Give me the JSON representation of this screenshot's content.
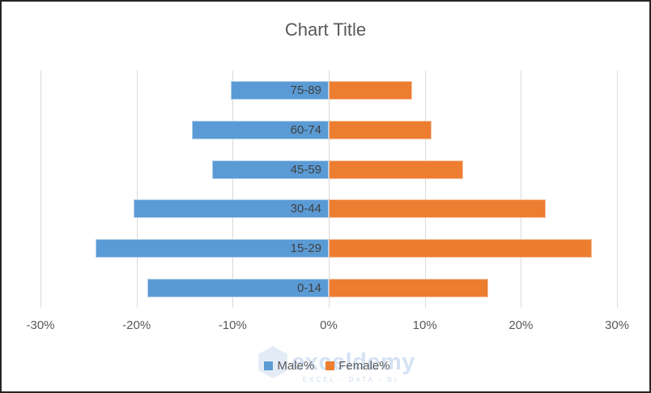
{
  "chart_data": {
    "type": "bar",
    "subtype": "population-pyramid",
    "orientation": "horizontal",
    "title": "Chart Title",
    "category_order": "top_to_bottom",
    "categories": [
      "75-89",
      "60-74",
      "45-59",
      "30-44",
      "15-29",
      "0-14"
    ],
    "series": [
      {
        "name": "Male%",
        "side": "left",
        "color": "#5B9BD5",
        "values": [
          10.2,
          14.2,
          12.1,
          20.3,
          24.3,
          18.9
        ]
      },
      {
        "name": "Female%",
        "side": "right",
        "color": "#ED7D31",
        "values": [
          8.7,
          10.7,
          14.0,
          22.6,
          27.4,
          16.6
        ]
      }
    ],
    "xlim": [
      -30,
      30
    ],
    "x_ticks": [
      {
        "value": -30,
        "label": "-30%"
      },
      {
        "value": -20,
        "label": "-20%"
      },
      {
        "value": -10,
        "label": "-10%"
      },
      {
        "value": 0,
        "label": "0%"
      },
      {
        "value": 10,
        "label": "10%"
      },
      {
        "value": 20,
        "label": "20%"
      },
      {
        "value": 30,
        "label": "30%"
      }
    ],
    "grid": "vertical",
    "legend_position": "bottom",
    "note": "Male% series plotted as negative (leftward) lengths; category labels rendered inside end of male bars"
  },
  "watermark": {
    "text": "exceldemy",
    "tagline": "EXCEL - DATA - BI"
  },
  "colors": {
    "male": "#5B9BD5",
    "female": "#ED7D31",
    "gridline": "#D9D9D9",
    "title_text": "#595959",
    "tick_label": "#595959",
    "category_label": "#404040",
    "frame_border": "#262626",
    "watermark_blue": "#AAC6E8"
  }
}
